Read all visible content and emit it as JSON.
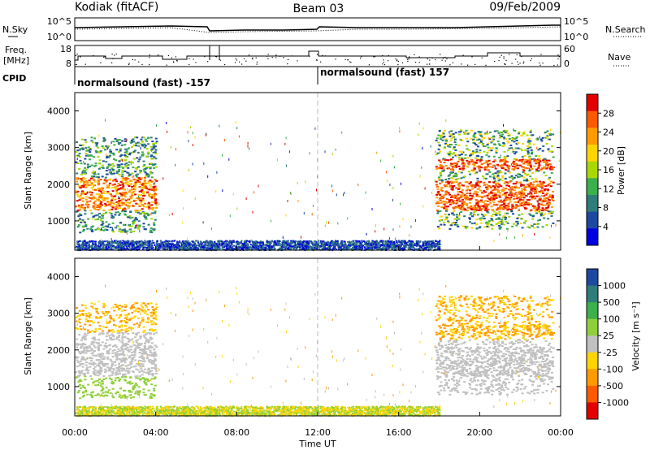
{
  "header": {
    "station": "Kodiak (fitACF)",
    "beam": "Beam 03",
    "date": "09/Feb/2009"
  },
  "noise_panel": {
    "left_label": "N.Sky",
    "right_label": "N.Search",
    "left_ticks": [
      "10^5",
      "10^0"
    ],
    "right_ticks": [
      "10^5",
      "10^0"
    ]
  },
  "freq_panel": {
    "left_label_top": "Freq.",
    "left_label_bottom": "[MHz]",
    "right_label": "Nave",
    "left_ticks": [
      "18",
      "8"
    ],
    "right_ticks": [
      "60",
      "0"
    ]
  },
  "cpid": {
    "label": "CPID",
    "segments": [
      {
        "start_hour": 0,
        "text": "normalsound (fast) -157"
      },
      {
        "start_hour": 12,
        "text": "normalsound (fast) 157"
      }
    ]
  },
  "chart_data": [
    {
      "type": "heatmap",
      "name_key": "power",
      "ylabel": "Slant Range [km]",
      "x_range_hours": [
        0,
        24
      ],
      "ylim_km": [
        200,
        4500
      ],
      "y_ticks": [
        "1000",
        "2000",
        "3000",
        "4000"
      ],
      "colorbar": {
        "label": "Power [dB]",
        "ticks": [
          "28",
          "24",
          "20",
          "16",
          "12",
          "8",
          "4"
        ],
        "colors": [
          "#e30000",
          "#ff5a00",
          "#ff9a00",
          "#ffd400",
          "#a8d800",
          "#3cb04a",
          "#2e7d7b",
          "#1d4aa0",
          "#0000e0"
        ]
      },
      "regions": [
        {
          "h0": 0.0,
          "h1": 4.0,
          "r0": 700,
          "r1": 3300,
          "note": "scatter"
        },
        {
          "h0": 0.0,
          "h1": 18.0,
          "r0": 200,
          "r1": 500,
          "note": "ground scatter band"
        },
        {
          "h0": 17.8,
          "h1": 23.6,
          "r0": 800,
          "r1": 3500,
          "note": "scatter"
        }
      ]
    },
    {
      "type": "heatmap",
      "name_key": "velocity",
      "ylabel": "Slant Range [km]",
      "x_range_hours": [
        0,
        24
      ],
      "ylim_km": [
        200,
        4500
      ],
      "y_ticks": [
        "1000",
        "2000",
        "3000",
        "4000"
      ],
      "colorbar": {
        "label": "Velocity [m s⁻¹]",
        "ticks": [
          "1000",
          "500",
          "100",
          "25",
          "-25",
          "-100",
          "-500",
          "-1000"
        ],
        "colors": [
          "#1d4aa0",
          "#2e7d7b",
          "#3cb04a",
          "#8fd03a",
          "#c0c0c0",
          "#ffd400",
          "#ff9a00",
          "#ff5a00",
          "#e30000"
        ]
      }
    }
  ],
  "x_axis": {
    "label": "Time UT",
    "ticks": [
      "00:00",
      "04:00",
      "08:00",
      "12:00",
      "16:00",
      "20:00",
      "00:00"
    ]
  }
}
